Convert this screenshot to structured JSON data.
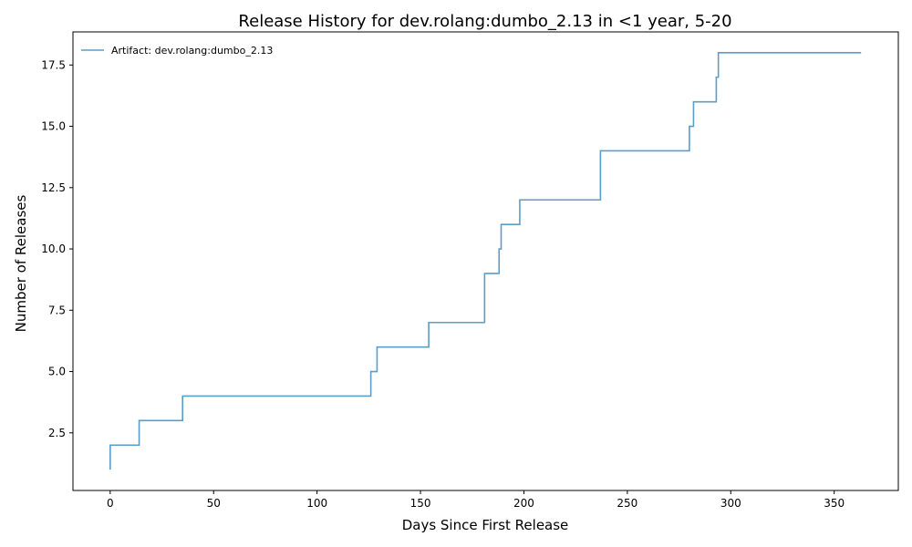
{
  "chart_data": {
    "type": "line",
    "title": "Release History for dev.rolang:dumbo_2.13 in <1 year, 5-20",
    "xlabel": "Days Since First Release",
    "ylabel": "Number of Releases",
    "xlim": [
      -18,
      381
    ],
    "ylim": [
      0.15,
      18.85
    ],
    "x_ticks": [
      0,
      50,
      100,
      150,
      200,
      250,
      300,
      350
    ],
    "y_ticks": [
      2.5,
      5.0,
      7.5,
      10.0,
      12.5,
      15.0,
      17.5
    ],
    "x_tick_labels": [
      "0",
      "50",
      "100",
      "150",
      "200",
      "250",
      "300",
      "350"
    ],
    "y_tick_labels": [
      "2.5",
      "5.0",
      "7.5",
      "10.0",
      "12.5",
      "15.0",
      "17.5"
    ],
    "grid": false,
    "legend_position": "top-left",
    "line_color": "#5a9ec9",
    "step": "post",
    "series": [
      {
        "name": "Artifact: dev.rolang:dumbo_2.13",
        "x": [
          0,
          0,
          14,
          35,
          126,
          129,
          154,
          181,
          188,
          189,
          198,
          237,
          280,
          282,
          293,
          294,
          363
        ],
        "y": [
          1,
          2,
          3,
          4,
          5,
          6,
          7,
          9,
          10,
          11,
          12,
          14,
          15,
          16,
          17,
          18,
          18
        ]
      }
    ]
  }
}
